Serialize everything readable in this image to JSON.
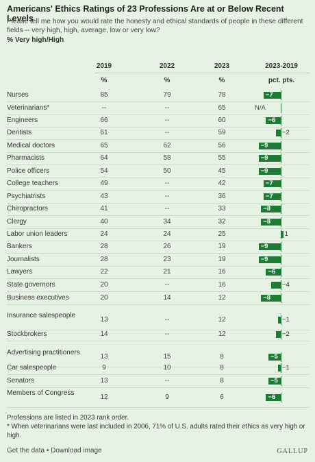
{
  "title": "Americans' Ethics Ratings of 23 Professions Are at or Below Recent Levels",
  "subtitle": "Please tell me how you would rate the honesty and ethical standards of people in these different fields -- very high, high, average, low or very low?",
  "measure": "% Very high/High",
  "columns": {
    "y2019": "2019",
    "y2022": "2022",
    "y2023": "2023",
    "change": "2023-2019",
    "pct": "%",
    "pts": "pct. pts."
  },
  "accent_color": "#1e7a34",
  "chart_data": {
    "type": "table",
    "title": "Americans' Ethics Ratings of 23 Professions Are at or Below Recent Levels",
    "columns": [
      "2019",
      "2022",
      "2023",
      "2023-2019"
    ],
    "rows": [
      {
        "profession": "Nurses",
        "y2019": "85",
        "y2022": "79",
        "y2023": "78",
        "change": -7
      },
      {
        "profession": "Veterinarians*",
        "y2019": "--",
        "y2022": "--",
        "y2023": "65",
        "change": null,
        "change_label": "N/A"
      },
      {
        "profession": "Engineers",
        "y2019": "66",
        "y2022": "--",
        "y2023": "60",
        "change": -6
      },
      {
        "profession": "Dentists",
        "y2019": "61",
        "y2022": "--",
        "y2023": "59",
        "change": -2
      },
      {
        "profession": "Medical doctors",
        "y2019": "65",
        "y2022": "62",
        "y2023": "56",
        "change": -9
      },
      {
        "profession": "Pharmacists",
        "y2019": "64",
        "y2022": "58",
        "y2023": "55",
        "change": -9
      },
      {
        "profession": "Police officers",
        "y2019": "54",
        "y2022": "50",
        "y2023": "45",
        "change": -9
      },
      {
        "profession": "College teachers",
        "y2019": "49",
        "y2022": "--",
        "y2023": "42",
        "change": -7
      },
      {
        "profession": "Psychiatrists",
        "y2019": "43",
        "y2022": "--",
        "y2023": "36",
        "change": -7
      },
      {
        "profession": "Chiropractors",
        "y2019": "41",
        "y2022": "--",
        "y2023": "33",
        "change": -8
      },
      {
        "profession": "Clergy",
        "y2019": "40",
        "y2022": "34",
        "y2023": "32",
        "change": -8
      },
      {
        "profession": "Labor union leaders",
        "y2019": "24",
        "y2022": "24",
        "y2023": "25",
        "change": 1
      },
      {
        "profession": "Bankers",
        "y2019": "28",
        "y2022": "26",
        "y2023": "19",
        "change": -9
      },
      {
        "profession": "Journalists",
        "y2019": "28",
        "y2022": "23",
        "y2023": "19",
        "change": -9
      },
      {
        "profession": "Lawyers",
        "y2019": "22",
        "y2022": "21",
        "y2023": "16",
        "change": -6
      },
      {
        "profession": "State governors",
        "y2019": "20",
        "y2022": "--",
        "y2023": "16",
        "change": -4
      },
      {
        "profession": "Business executives",
        "y2019": "20",
        "y2022": "14",
        "y2023": "12",
        "change": -8
      },
      {
        "profession": "Insurance salespeople",
        "y2019": "13",
        "y2022": "--",
        "y2023": "12",
        "change": -1
      },
      {
        "profession": "Stockbrokers",
        "y2019": "14",
        "y2022": "--",
        "y2023": "12",
        "change": -2
      },
      {
        "profession": "Advertising practitioners",
        "y2019": "13",
        "y2022": "15",
        "y2023": "8",
        "change": -5
      },
      {
        "profession": "Car salespeople",
        "y2019": "9",
        "y2022": "10",
        "y2023": "8",
        "change": -1
      },
      {
        "profession": "Senators",
        "y2019": "13",
        "y2022": "--",
        "y2023": "8",
        "change": -5
      },
      {
        "profession": "Members of Congress",
        "y2019": "12",
        "y2022": "9",
        "y2023": "6",
        "change": -6
      }
    ]
  },
  "footnotes": {
    "order": "Professions are listed in 2023 rank order.",
    "vets": "* When veterinarians were last included in 2006, 71% of U.S. adults rated their ethics as very high or high."
  },
  "links": {
    "get_data": "Get the data",
    "separator": " • ",
    "download": "Download image"
  },
  "brand": "GALLUP"
}
